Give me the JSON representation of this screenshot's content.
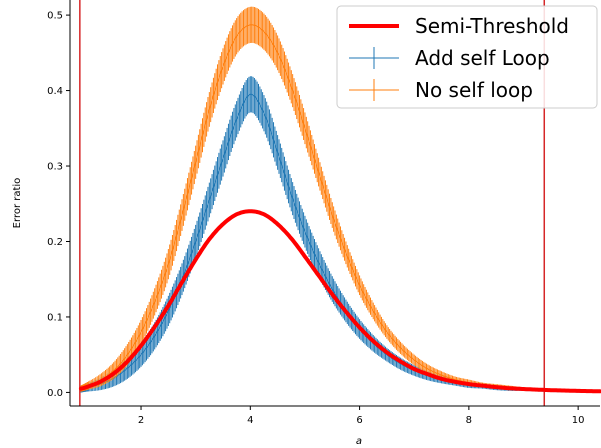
{
  "chart_data": {
    "type": "line",
    "xlabel": "a",
    "ylabel": "Error ratio",
    "xlim": [
      0.7,
      10.4
    ],
    "ylim": [
      -0.018,
      0.52
    ],
    "x_ticks": [
      2,
      4,
      6,
      8,
      10
    ],
    "x_tick_labels": [
      "2",
      "4",
      "6",
      "8",
      "10"
    ],
    "y_ticks": [
      0.0,
      0.1,
      0.2,
      0.3,
      0.4,
      0.5
    ],
    "y_tick_labels": [
      "0.0",
      "0.1",
      "0.2",
      "0.3",
      "0.4",
      "0.5"
    ],
    "grid": false,
    "legend_position": "top-right",
    "vertical_lines": [
      {
        "x": 0.88,
        "color": "#d62728"
      },
      {
        "x": 9.38,
        "color": "#d62728"
      }
    ],
    "series": [
      {
        "name": "Semi-Threshold",
        "style": "line",
        "color": "#ff0000",
        "x": [
          0.9,
          1.0,
          1.25,
          1.5,
          1.75,
          2.0,
          2.25,
          2.5,
          2.75,
          3.0,
          3.25,
          3.5,
          3.75,
          4.0,
          4.25,
          4.5,
          4.75,
          5.0,
          5.25,
          5.5,
          5.75,
          6.0,
          6.25,
          6.5,
          6.75,
          7.0,
          7.25,
          7.5,
          7.75,
          8.0,
          8.25,
          8.5,
          8.75,
          9.0,
          9.25,
          9.5,
          9.75,
          10.0,
          10.25,
          10.4
        ],
        "y": [
          0.005,
          0.007,
          0.014,
          0.025,
          0.041,
          0.062,
          0.087,
          0.115,
          0.146,
          0.176,
          0.203,
          0.223,
          0.236,
          0.24,
          0.236,
          0.223,
          0.204,
          0.18,
          0.155,
          0.13,
          0.107,
          0.086,
          0.068,
          0.053,
          0.041,
          0.031,
          0.024,
          0.018,
          0.014,
          0.011,
          0.009,
          0.007,
          0.0055,
          0.0045,
          0.0037,
          0.003,
          0.0025,
          0.002,
          0.0017,
          0.0015
        ]
      },
      {
        "name": "Add self Loop",
        "style": "errorbar",
        "color": "#1f77b4",
        "x": [
          0.9,
          1.0,
          1.25,
          1.5,
          1.75,
          2.0,
          2.25,
          2.5,
          2.75,
          3.0,
          3.25,
          3.5,
          3.75,
          4.0,
          4.25,
          4.5,
          4.75,
          5.0,
          5.25,
          5.5,
          5.75,
          6.0,
          6.25,
          6.5,
          6.75,
          7.0,
          7.25,
          7.5,
          7.75,
          8.0,
          8.25,
          8.5,
          8.75,
          9.0,
          9.25,
          9.5,
          9.75,
          10.0,
          10.25,
          10.4
        ],
        "y": [
          0.004,
          0.006,
          0.011,
          0.019,
          0.032,
          0.05,
          0.075,
          0.108,
          0.15,
          0.2,
          0.255,
          0.31,
          0.362,
          0.395,
          0.37,
          0.318,
          0.262,
          0.213,
          0.172,
          0.137,
          0.108,
          0.084,
          0.065,
          0.05,
          0.038,
          0.029,
          0.022,
          0.017,
          0.013,
          0.01,
          0.008,
          0.006,
          0.005,
          0.004,
          0.0032,
          0.0026,
          0.0021,
          0.0017,
          0.0014,
          0.0012
        ],
        "err": [
          0.004,
          0.005,
          0.008,
          0.011,
          0.014,
          0.016,
          0.018,
          0.02,
          0.021,
          0.022,
          0.023,
          0.024,
          0.024,
          0.024,
          0.024,
          0.023,
          0.022,
          0.021,
          0.019,
          0.017,
          0.015,
          0.013,
          0.011,
          0.009,
          0.008,
          0.007,
          0.006,
          0.005,
          0.004,
          0.004,
          0.003,
          0.003,
          0.003,
          0.002,
          0.002,
          0.002,
          0.002,
          0.002,
          0.002,
          0.002
        ]
      },
      {
        "name": "No self loop",
        "style": "errorbar",
        "color": "#ff7f0e",
        "x": [
          0.9,
          1.0,
          1.25,
          1.5,
          1.75,
          2.0,
          2.25,
          2.5,
          2.75,
          3.0,
          3.25,
          3.5,
          3.75,
          4.0,
          4.25,
          4.5,
          4.75,
          5.0,
          5.25,
          5.5,
          5.75,
          6.0,
          6.25,
          6.5,
          6.75,
          7.0,
          7.25,
          7.5,
          7.75,
          8.0,
          8.25,
          8.5,
          8.75,
          9.0,
          9.25,
          9.5,
          9.75,
          10.0,
          10.25,
          10.4
        ],
        "y": [
          0.005,
          0.008,
          0.016,
          0.029,
          0.05,
          0.08,
          0.12,
          0.17,
          0.235,
          0.305,
          0.375,
          0.432,
          0.472,
          0.487,
          0.478,
          0.45,
          0.405,
          0.35,
          0.292,
          0.235,
          0.185,
          0.142,
          0.108,
          0.08,
          0.059,
          0.043,
          0.031,
          0.023,
          0.017,
          0.013,
          0.01,
          0.008,
          0.006,
          0.005,
          0.004,
          0.0033,
          0.0027,
          0.0022,
          0.0018,
          0.0016
        ],
        "err": [
          0.004,
          0.005,
          0.008,
          0.011,
          0.014,
          0.016,
          0.018,
          0.02,
          0.021,
          0.022,
          0.023,
          0.024,
          0.024,
          0.024,
          0.024,
          0.023,
          0.022,
          0.021,
          0.019,
          0.017,
          0.015,
          0.013,
          0.011,
          0.009,
          0.008,
          0.007,
          0.006,
          0.005,
          0.004,
          0.004,
          0.003,
          0.003,
          0.003,
          0.002,
          0.002,
          0.002,
          0.002,
          0.002,
          0.002,
          0.002
        ]
      }
    ],
    "legend": [
      {
        "label": "Semi-Threshold",
        "color": "#ff0000",
        "style": "line"
      },
      {
        "label": "Add self Loop",
        "color": "#1f77b4",
        "style": "errorbar"
      },
      {
        "label": "No self loop",
        "color": "#ff7f0e",
        "style": "errorbar"
      }
    ]
  }
}
